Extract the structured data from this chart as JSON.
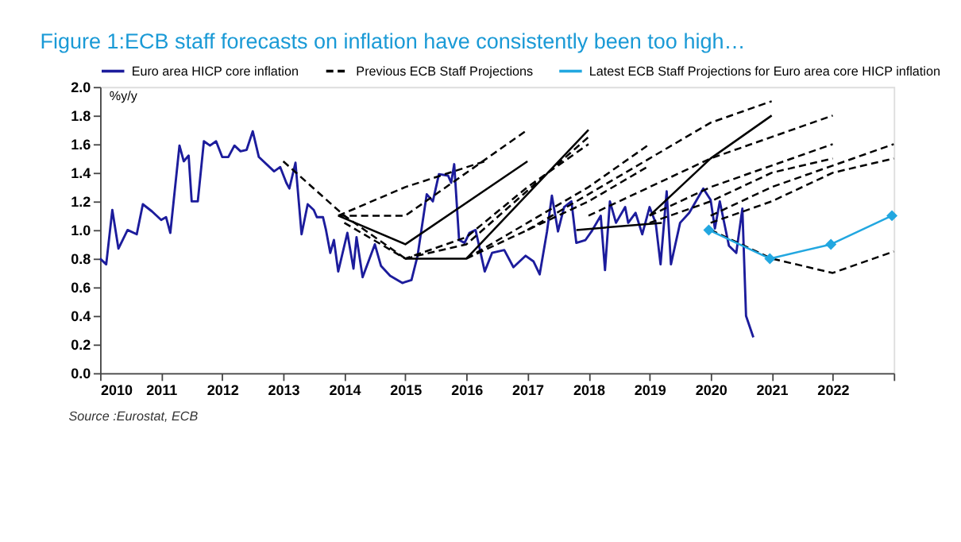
{
  "chart_data": {
    "type": "line",
    "title": "Figure 1:ECB staff forecasts on inflation have consistently been too high…",
    "ylabel": "%y/y",
    "annotations": [
      "Source :Eurostat, ECB"
    ],
    "xlim": [
      2010,
      2023
    ],
    "xticks": [
      2010,
      2011,
      2012,
      2013,
      2014,
      2015,
      2016,
      2017,
      2018,
      2019,
      2020,
      2021,
      2022,
      {
        "value": 2023,
        "label": null
      }
    ],
    "ylim": [
      0,
      2
    ],
    "yticks": [
      {
        "value": 0,
        "label": "0.0"
      },
      0.2,
      0.4,
      0.6,
      0.8,
      {
        "value": 1,
        "label": "1.0"
      },
      1.2,
      1.4,
      1.6,
      1.8,
      {
        "value": 2,
        "label": "2.0"
      }
    ],
    "grid": false,
    "legend": "top",
    "series": [
      {
        "name": "Euro area HICP core inflation",
        "color": "#1c1c9c",
        "line_style": "solid",
        "x": [
          2010.0,
          2010.1,
          2010.2,
          2010.3,
          2010.45,
          2010.6,
          2010.7,
          2010.85,
          2011.0,
          2011.08,
          2011.15,
          2011.3,
          2011.37,
          2011.45,
          2011.5,
          2011.6,
          2011.7,
          2011.8,
          2011.9,
          2012.0,
          2012.1,
          2012.2,
          2012.3,
          2012.4,
          2012.5,
          2012.6,
          2012.85,
          2012.95,
          2013.05,
          2013.1,
          2013.2,
          2013.3,
          2013.4,
          2013.5,
          2013.55,
          2013.65,
          2013.7,
          2013.77,
          2013.83,
          2013.9,
          2014.05,
          2014.15,
          2014.2,
          2014.3,
          2014.5,
          2014.6,
          2014.75,
          2014.95,
          2015.1,
          2015.2,
          2015.35,
          2015.45,
          2015.55,
          2015.7,
          2015.75,
          2015.8,
          2015.88,
          2015.97,
          2016.05,
          2016.15,
          2016.3,
          2016.42,
          2016.62,
          2016.77,
          2016.97,
          2017.1,
          2017.2,
          2017.32,
          2017.4,
          2017.5,
          2017.6,
          2017.72,
          2017.8,
          2017.95,
          2018.05,
          2018.2,
          2018.27,
          2018.35,
          2018.45,
          2018.6,
          2018.65,
          2018.77,
          2018.88,
          2019.0,
          2019.1,
          2019.18,
          2019.28,
          2019.35,
          2019.5,
          2019.65,
          2019.88,
          2020.0,
          2020.07,
          2020.15,
          2020.3,
          2020.42,
          2020.52,
          2020.58,
          2020.7
        ],
        "values": [
          0.8,
          0.76,
          1.14,
          0.87,
          1.0,
          0.97,
          1.18,
          1.13,
          1.07,
          1.09,
          0.98,
          1.59,
          1.48,
          1.52,
          1.2,
          1.2,
          1.62,
          1.59,
          1.62,
          1.51,
          1.51,
          1.59,
          1.55,
          1.56,
          1.69,
          1.51,
          1.41,
          1.44,
          1.33,
          1.29,
          1.47,
          0.97,
          1.18,
          1.14,
          1.09,
          1.09,
          1.0,
          0.84,
          0.93,
          0.71,
          0.98,
          0.73,
          0.95,
          0.67,
          0.9,
          0.75,
          0.68,
          0.63,
          0.65,
          0.82,
          1.25,
          1.2,
          1.39,
          1.38,
          1.33,
          1.46,
          0.93,
          0.91,
          0.98,
          1.0,
          0.71,
          0.84,
          0.86,
          0.74,
          0.82,
          0.78,
          0.69,
          0.99,
          1.24,
          0.99,
          1.16,
          1.2,
          0.91,
          0.93,
          0.99,
          1.1,
          0.72,
          1.2,
          1.05,
          1.16,
          1.05,
          1.12,
          0.97,
          1.16,
          1.05,
          0.76,
          1.27,
          0.76,
          1.05,
          1.12,
          1.29,
          1.21,
          1.01,
          1.2,
          0.89,
          0.84,
          1.15,
          0.4,
          0.25
        ]
      },
      {
        "name": "Previous ECB Staff Projections",
        "color": "#000000",
        "line_style": "dashed",
        "x": [
          2013.0,
          2014.0,
          2015.0
        ],
        "values": [
          1.48,
          1.1,
          0.8
        ]
      },
      {
        "color": "#000000",
        "line_style": "dashed",
        "x": [
          2013.9,
          2015.0,
          2017.0
        ],
        "values": [
          1.1,
          1.1,
          1.7
        ]
      },
      {
        "color": "#000000",
        "line_style": "dashed",
        "x": [
          2013.9,
          2015.0,
          2016.3
        ],
        "values": [
          1.1,
          1.3,
          1.48
        ]
      },
      {
        "color": "#000000",
        "line_style": "dashed",
        "x": [
          2014.0,
          2015.0,
          2016.0,
          2017.0,
          2018.0
        ],
        "values": [
          1.05,
          0.8,
          0.95,
          1.3,
          1.6
        ]
      },
      {
        "color": "#000000",
        "line_style": "dashed",
        "x": [
          2015.0,
          2016.0,
          2018.0
        ],
        "values": [
          0.8,
          0.9,
          1.65
        ]
      },
      {
        "color": "#000000",
        "line_style": "dashed",
        "x": [
          2016.0,
          2017.0,
          2018.0,
          2019.0
        ],
        "values": [
          0.8,
          1.05,
          1.3,
          1.6
        ]
      },
      {
        "color": "#000000",
        "line_style": "dashed",
        "x": [
          2016.0,
          2017.0,
          2018.0,
          2019.0
        ],
        "values": [
          0.8,
          1.0,
          1.2,
          1.45
        ]
      },
      {
        "color": "#000000",
        "line_style": "dashed",
        "x": [
          2017.0,
          2018.0,
          2019.0,
          2020.0,
          2021.0
        ],
        "values": [
          1.0,
          1.25,
          1.5,
          1.75,
          1.9
        ]
      },
      {
        "color": "#000000",
        "line_style": "dashed",
        "x": [
          2018.0,
          2019.0,
          2020.0,
          2021.0,
          2022.0
        ],
        "values": [
          1.1,
          1.3,
          1.5,
          1.65,
          1.8
        ]
      },
      {
        "color": "#000000",
        "line_style": "dashed",
        "x": [
          2019.0,
          2020.0,
          2021.0,
          2022.0
        ],
        "values": [
          1.1,
          1.3,
          1.45,
          1.6
        ]
      },
      {
        "color": "#000000",
        "line_style": "dashed",
        "x": [
          2019.0,
          2020.0,
          2021.0,
          2022.0
        ],
        "values": [
          1.05,
          1.2,
          1.4,
          1.5
        ]
      },
      {
        "color": "#000000",
        "line_style": "dashed",
        "x": [
          2020.0,
          2021.0,
          2022.0,
          2023.0
        ],
        "values": [
          1.1,
          1.3,
          1.45,
          1.6
        ]
      },
      {
        "color": "#000000",
        "line_style": "dashed",
        "x": [
          2020.0,
          2021.0,
          2022.0,
          2023.0
        ],
        "values": [
          1.05,
          1.2,
          1.4,
          1.5
        ]
      },
      {
        "color": "#000000",
        "line_style": "dashed",
        "x": [
          2020.0,
          2021.0,
          2022.0,
          2023.0
        ],
        "values": [
          1.0,
          0.8,
          0.7,
          0.85
        ]
      },
      {
        "color": "#000000",
        "line_style": "solid",
        "x": [
          2013.9,
          2015.0,
          2017.0
        ],
        "values": [
          1.1,
          0.9,
          1.48
        ]
      },
      {
        "color": "#000000",
        "line_style": "solid",
        "x": [
          2015.0,
          2016.0,
          2018.0
        ],
        "values": [
          0.8,
          0.8,
          1.7
        ]
      },
      {
        "color": "#000000",
        "line_style": "solid",
        "x": [
          2017.8,
          2019.2
        ],
        "values": [
          1.0,
          1.05
        ]
      },
      {
        "color": "#000000",
        "line_style": "solid",
        "x": [
          2019.0,
          2020.0,
          2021.0
        ],
        "values": [
          1.1,
          1.5,
          1.8
        ]
      },
      {
        "name": "Latest ECB Staff Projections for Euro area core HICP inflation",
        "color": "#22a7e0",
        "line_style": "solid",
        "marker": "diamond",
        "x": [
          2019.97,
          2020.97,
          2021.97,
          2022.97
        ],
        "values": [
          1.0,
          0.8,
          0.9,
          1.1
        ]
      }
    ]
  }
}
